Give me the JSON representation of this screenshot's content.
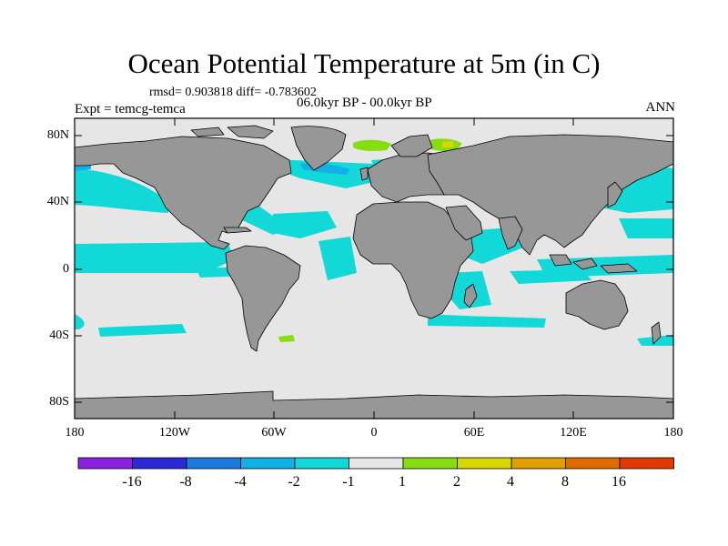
{
  "title": "Ocean Potential Temperature at 5m (in C)",
  "stats": "rmsd= 0.903818 diff= -0.783602",
  "left_label": "Expt = temcg-temca",
  "center_label": "06.0kyr BP - 00.0kyr BP",
  "right_label": "ANN",
  "y_ticks": [
    "80N",
    "40N",
    "0",
    "40S",
    "80S"
  ],
  "x_ticks": [
    "180",
    "120W",
    "60W",
    "0",
    "60E",
    "120E",
    "180"
  ],
  "colorbar": {
    "labels": [
      "-16",
      "-8",
      "-4",
      "-2",
      "-1",
      "1",
      "2",
      "4",
      "8",
      "16"
    ],
    "colors": [
      "#8a1fe0",
      "#2a2ad6",
      "#1c7be0",
      "#12b0e6",
      "#12d8d8",
      "#e6e6e6",
      "#88dd10",
      "#d8d800",
      "#e0a000",
      "#e06a00",
      "#e03a00"
    ]
  },
  "colors": {
    "land": "#979797",
    "ocean_neutral": "#e6e6e6",
    "cyan": "#12d8d8",
    "light_blue": "#12b0e6",
    "green": "#88dd10",
    "yellow": "#d8d800"
  }
}
